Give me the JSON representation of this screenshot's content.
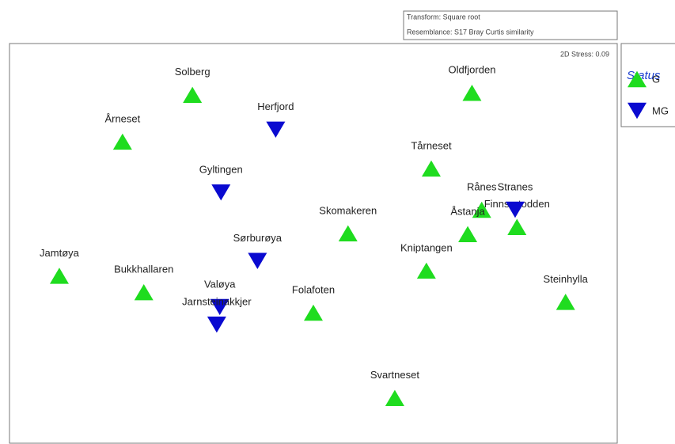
{
  "chart_data": {
    "type": "scatter",
    "notes": [
      "Transform: Square root",
      "Resemblance: S17 Bray Curtis similarity"
    ],
    "stress": "2D Stress: 0.09",
    "legend_title": "Status",
    "xlim": [
      0,
      100
    ],
    "ylim": [
      0,
      100
    ],
    "grid": false,
    "series": [
      {
        "name": "G",
        "color": "#1fdc1f",
        "marker": "triangle-up",
        "labels": [
          "Solberg",
          "Oldfjorden",
          "Årneset",
          "Tårneset",
          "Rånes",
          "Finnsætodden",
          "Åstanja",
          "Skomakeren",
          "Kniptangen",
          "Jamtøya",
          "Bukkhallaren",
          "Folafoten",
          "Steinhylla",
          "Svartneset"
        ],
        "x": [
          30.1,
          76.1,
          18.6,
          69.4,
          77.7,
          83.5,
          75.4,
          55.7,
          68.6,
          8.2,
          22.1,
          50.0,
          91.5,
          63.4
        ],
        "values": [
          87.2,
          87.7,
          75.5,
          68.8,
          58.5,
          54.2,
          52.4,
          52.6,
          43.3,
          42.0,
          37.9,
          32.8,
          35.5,
          11.5
        ]
      },
      {
        "name": "MG",
        "color": "#0a0ad0",
        "marker": "triangle-down",
        "labels": [
          "Herfjord",
          "Gyltingen",
          "Stranes",
          "Sørburøya",
          "Valøya",
          "Jarnsteinakkjer"
        ],
        "x": [
          43.8,
          34.8,
          83.2,
          40.8,
          34.6,
          34.1
        ],
        "values": [
          78.5,
          62.8,
          58.5,
          45.7,
          34.2,
          29.8
        ]
      }
    ]
  }
}
